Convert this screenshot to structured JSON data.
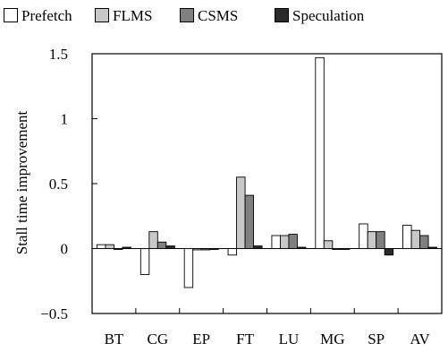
{
  "chart_data": {
    "type": "bar",
    "title": "",
    "xlabel": "",
    "ylabel": "Stall time improvement",
    "ylim": [
      -0.5,
      1.5
    ],
    "yticks": [
      -0.5,
      0,
      0.5,
      1,
      1.5
    ],
    "ytick_labels": [
      "−0.5",
      "0",
      "0.5",
      "1",
      "1.5"
    ],
    "grid": false,
    "legend_position": "top",
    "categories": [
      "BT",
      "CG",
      "EP",
      "FT",
      "LU",
      "MG",
      "SP",
      "AV"
    ],
    "series": [
      {
        "name": "Prefetch",
        "color": "#ffffff",
        "values": [
          0.03,
          -0.2,
          -0.3,
          -0.05,
          0.1,
          1.47,
          0.19,
          0.18
        ]
      },
      {
        "name": "FLMS",
        "color": "#c8c8c8",
        "values": [
          0.03,
          0.13,
          -0.01,
          0.55,
          0.1,
          0.06,
          0.13,
          0.14
        ]
      },
      {
        "name": "CSMS",
        "color": "#808080",
        "values": [
          0.0,
          0.05,
          -0.01,
          0.41,
          0.11,
          0.0,
          0.13,
          0.1
        ]
      },
      {
        "name": "Speculation",
        "color": "#2a2a2a",
        "values": [
          0.01,
          0.02,
          0.0,
          0.02,
          0.01,
          0.0,
          -0.05,
          0.01
        ]
      }
    ]
  }
}
